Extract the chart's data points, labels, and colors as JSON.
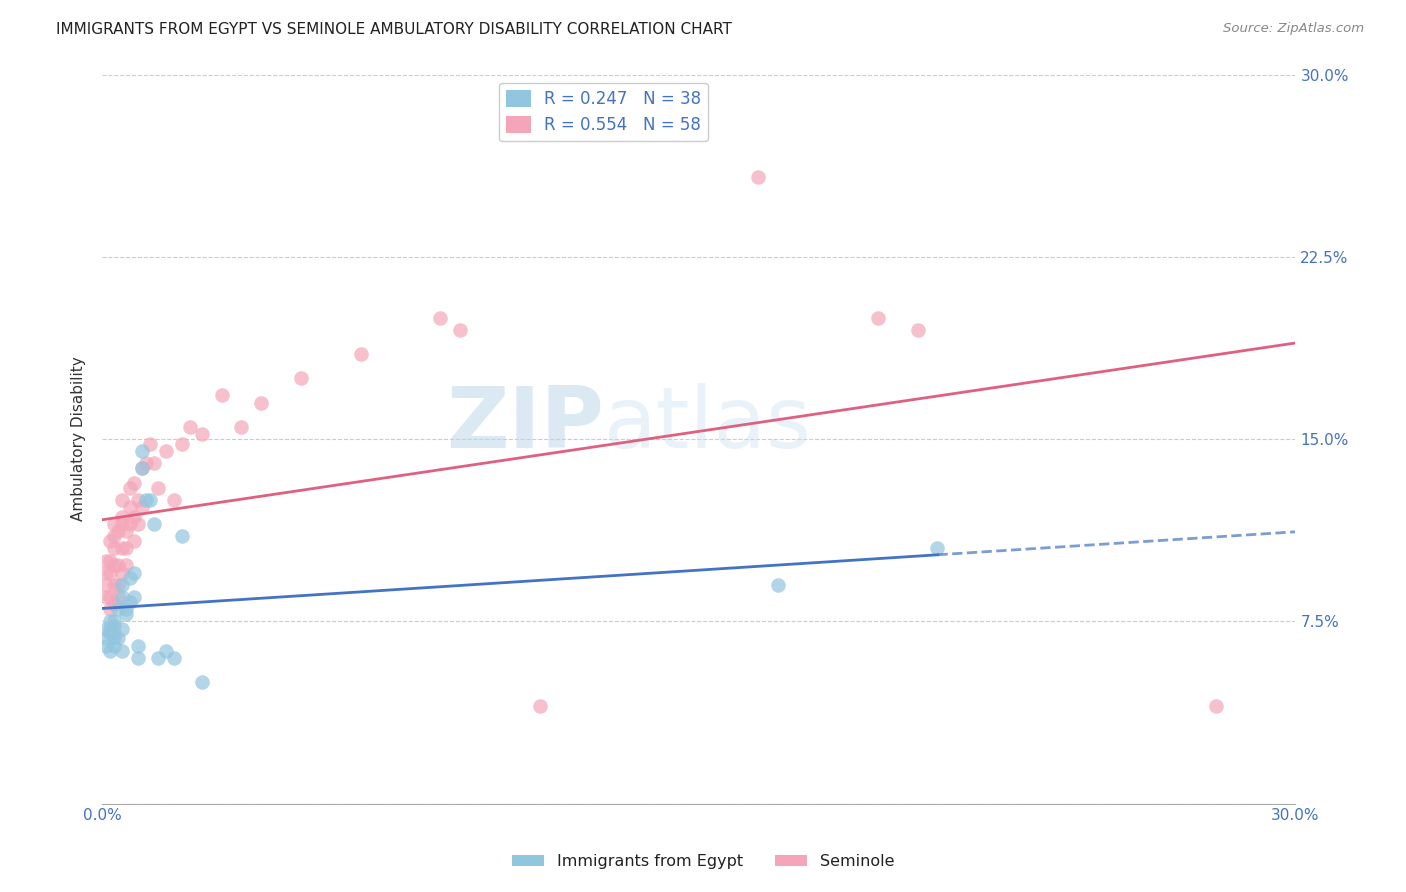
{
  "title": "IMMIGRANTS FROM EGYPT VS SEMINOLE AMBULATORY DISABILITY CORRELATION CHART",
  "source": "Source: ZipAtlas.com",
  "ylabel": "Ambulatory Disability",
  "legend_label1": "Immigrants from Egypt",
  "legend_label2": "Seminole",
  "r1": 0.247,
  "n1": 38,
  "r2": 0.554,
  "n2": 58,
  "color1": "#92c5de",
  "color2": "#f4a6b8",
  "trendline1_color": "#4472c4",
  "trendline2_color": "#e06080",
  "xmin": 0.0,
  "xmax": 0.3,
  "ymin": 0.0,
  "ymax": 0.3,
  "yticks": [
    0.0,
    0.075,
    0.15,
    0.225,
    0.3
  ],
  "ytick_labels": [
    "",
    "7.5%",
    "15.0%",
    "22.5%",
    "30.0%"
  ],
  "watermark_zip": "ZIP",
  "watermark_atlas": "atlas",
  "blue_scatter_x": [
    0.001,
    0.001,
    0.001,
    0.002,
    0.002,
    0.002,
    0.002,
    0.003,
    0.003,
    0.003,
    0.003,
    0.003,
    0.004,
    0.004,
    0.005,
    0.005,
    0.005,
    0.005,
    0.006,
    0.006,
    0.007,
    0.007,
    0.008,
    0.008,
    0.009,
    0.009,
    0.01,
    0.01,
    0.011,
    0.012,
    0.013,
    0.014,
    0.016,
    0.018,
    0.02,
    0.025,
    0.17,
    0.21
  ],
  "blue_scatter_y": [
    0.068,
    0.072,
    0.065,
    0.063,
    0.07,
    0.075,
    0.072,
    0.068,
    0.073,
    0.065,
    0.07,
    0.075,
    0.068,
    0.08,
    0.063,
    0.072,
    0.09,
    0.085,
    0.08,
    0.078,
    0.083,
    0.093,
    0.085,
    0.095,
    0.06,
    0.065,
    0.138,
    0.145,
    0.125,
    0.125,
    0.115,
    0.06,
    0.063,
    0.06,
    0.11,
    0.05,
    0.09,
    0.105
  ],
  "pink_scatter_x": [
    0.001,
    0.001,
    0.001,
    0.001,
    0.002,
    0.002,
    0.002,
    0.002,
    0.002,
    0.003,
    0.003,
    0.003,
    0.003,
    0.003,
    0.003,
    0.004,
    0.004,
    0.004,
    0.004,
    0.005,
    0.005,
    0.005,
    0.005,
    0.005,
    0.006,
    0.006,
    0.006,
    0.007,
    0.007,
    0.007,
    0.008,
    0.008,
    0.008,
    0.009,
    0.009,
    0.01,
    0.01,
    0.011,
    0.012,
    0.013,
    0.014,
    0.016,
    0.018,
    0.02,
    0.022,
    0.025,
    0.03,
    0.035,
    0.04,
    0.05,
    0.065,
    0.085,
    0.09,
    0.11,
    0.165,
    0.195,
    0.205,
    0.28
  ],
  "pink_scatter_y": [
    0.085,
    0.09,
    0.095,
    0.1,
    0.08,
    0.085,
    0.095,
    0.1,
    0.108,
    0.082,
    0.09,
    0.098,
    0.105,
    0.11,
    0.115,
    0.085,
    0.09,
    0.098,
    0.112,
    0.095,
    0.105,
    0.115,
    0.125,
    0.118,
    0.098,
    0.105,
    0.112,
    0.115,
    0.122,
    0.13,
    0.108,
    0.118,
    0.132,
    0.115,
    0.125,
    0.122,
    0.138,
    0.14,
    0.148,
    0.14,
    0.13,
    0.145,
    0.125,
    0.148,
    0.155,
    0.152,
    0.168,
    0.155,
    0.165,
    0.175,
    0.185,
    0.2,
    0.195,
    0.04,
    0.258,
    0.2,
    0.195,
    0.04
  ]
}
